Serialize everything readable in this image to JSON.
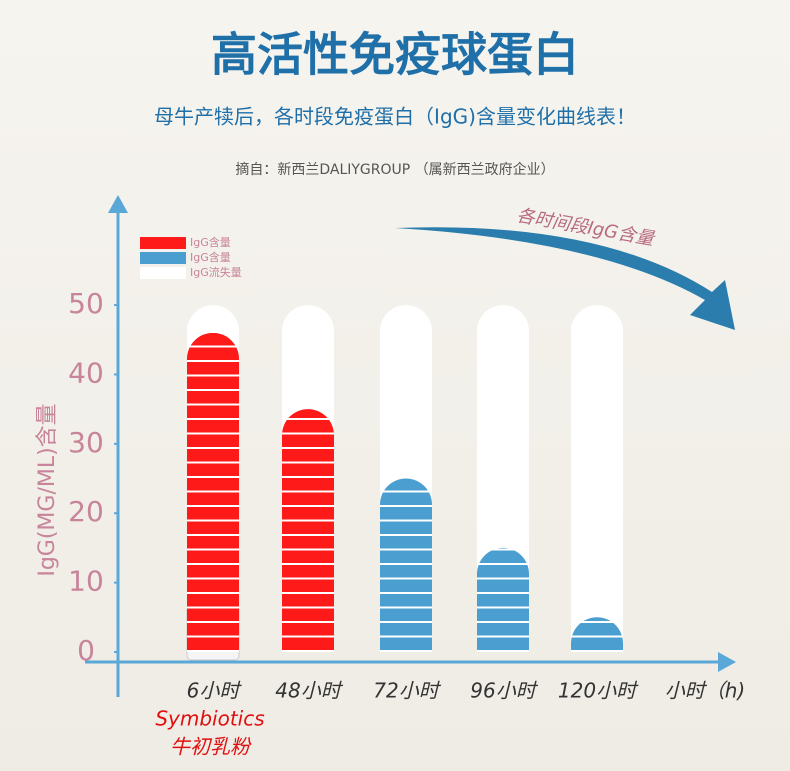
{
  "chart_data": {
    "type": "bar",
    "title": "高活性免疫球蛋白",
    "subtitle": "母牛产犊后，各时段免疫蛋白（IgG)含量变化曲线表！",
    "source": "摘自：新西兰DALIYGROUP （属新西兰政府企业）",
    "trend_label": "各时间段IgG含量",
    "y_label": "IgG(MG/ML)含量",
    "x_label": "小时（h)",
    "product_label": [
      "Symbiotics",
      "牛初乳粉"
    ],
    "categories": [
      "6小时",
      "48小时",
      "72小时",
      "96小时",
      "120小时"
    ],
    "series": [
      {
        "name": "IgG含量",
        "color": "#ff1a1a",
        "values": [
          46,
          35,
          null,
          null,
          null
        ]
      },
      {
        "name": "IgG含量",
        "color": "#4a9fd0",
        "values": [
          null,
          null,
          25,
          15,
          5
        ]
      },
      {
        "name": "IgG流失量",
        "color": "#ffffff",
        "values": [
          4,
          15,
          25,
          35,
          45
        ]
      }
    ],
    "stacked": true,
    "ylim": [
      0,
      65
    ],
    "yticks": [
      0,
      10,
      20,
      30,
      40,
      50
    ],
    "legend": "top-left"
  }
}
